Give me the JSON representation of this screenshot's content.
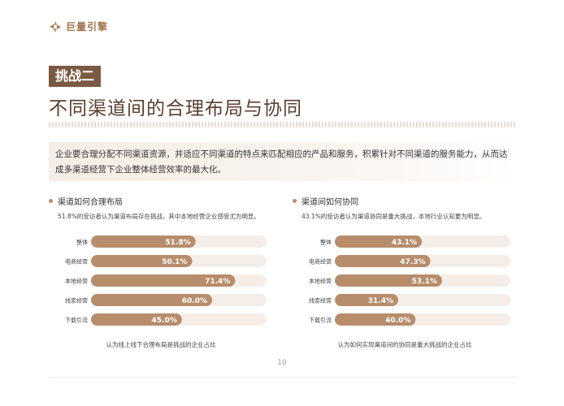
{
  "brand": {
    "name": "巨量引擎",
    "accent": "#b78d6c",
    "dark": "#7a5a42"
  },
  "tag": "挑战二",
  "title": "不同渠道间的合理布局与协同",
  "intro": "企业要合理分配不同渠道资源，并适应不同渠道的特点来匹配相应的产品和服务，积累针对不同渠道的服务能力，从而达成多渠道经营下企业整体经营效率的最大化。",
  "left_panel": {
    "heading": "渠道如何合理布局",
    "subtitle": "51.8%的受访者认为渠道布局存在挑战，其中本地经营企业感受尤为明显。",
    "caption": "认为线上线下合理布局是挑战的企业占比"
  },
  "right_panel": {
    "heading": "渠道间如何协同",
    "subtitle": "43.1%的受访者认为渠道协同是重大挑战，本地行业认知更为明显。",
    "caption": "认为如何实现渠道间的协同是重大挑战的企业占比"
  },
  "chart_data": [
    {
      "type": "bar",
      "orientation": "horizontal",
      "categories": [
        "整体",
        "电商经营",
        "本地经营",
        "线索经营",
        "下载引流"
      ],
      "values": [
        51.8,
        50.1,
        71.4,
        60.0,
        45.0
      ],
      "labels": [
        "51.8%",
        "50.1%",
        "71.4%",
        "60.0%",
        "45.0%"
      ],
      "xlim": [
        0,
        100
      ],
      "bar_color": "#b78d6c",
      "track_color": "#f5ede7"
    },
    {
      "type": "bar",
      "orientation": "horizontal",
      "categories": [
        "整体",
        "电商经营",
        "本地经营",
        "线索经营",
        "下载引流"
      ],
      "values": [
        43.1,
        47.3,
        53.1,
        31.4,
        40.0
      ],
      "labels": [
        "43.1%",
        "47.3%",
        "53.1%",
        "31.4%",
        "40.0%"
      ],
      "xlim": [
        0,
        100
      ],
      "bar_color": "#b78d6c",
      "track_color": "#f5ede7"
    }
  ],
  "page_number": "10"
}
